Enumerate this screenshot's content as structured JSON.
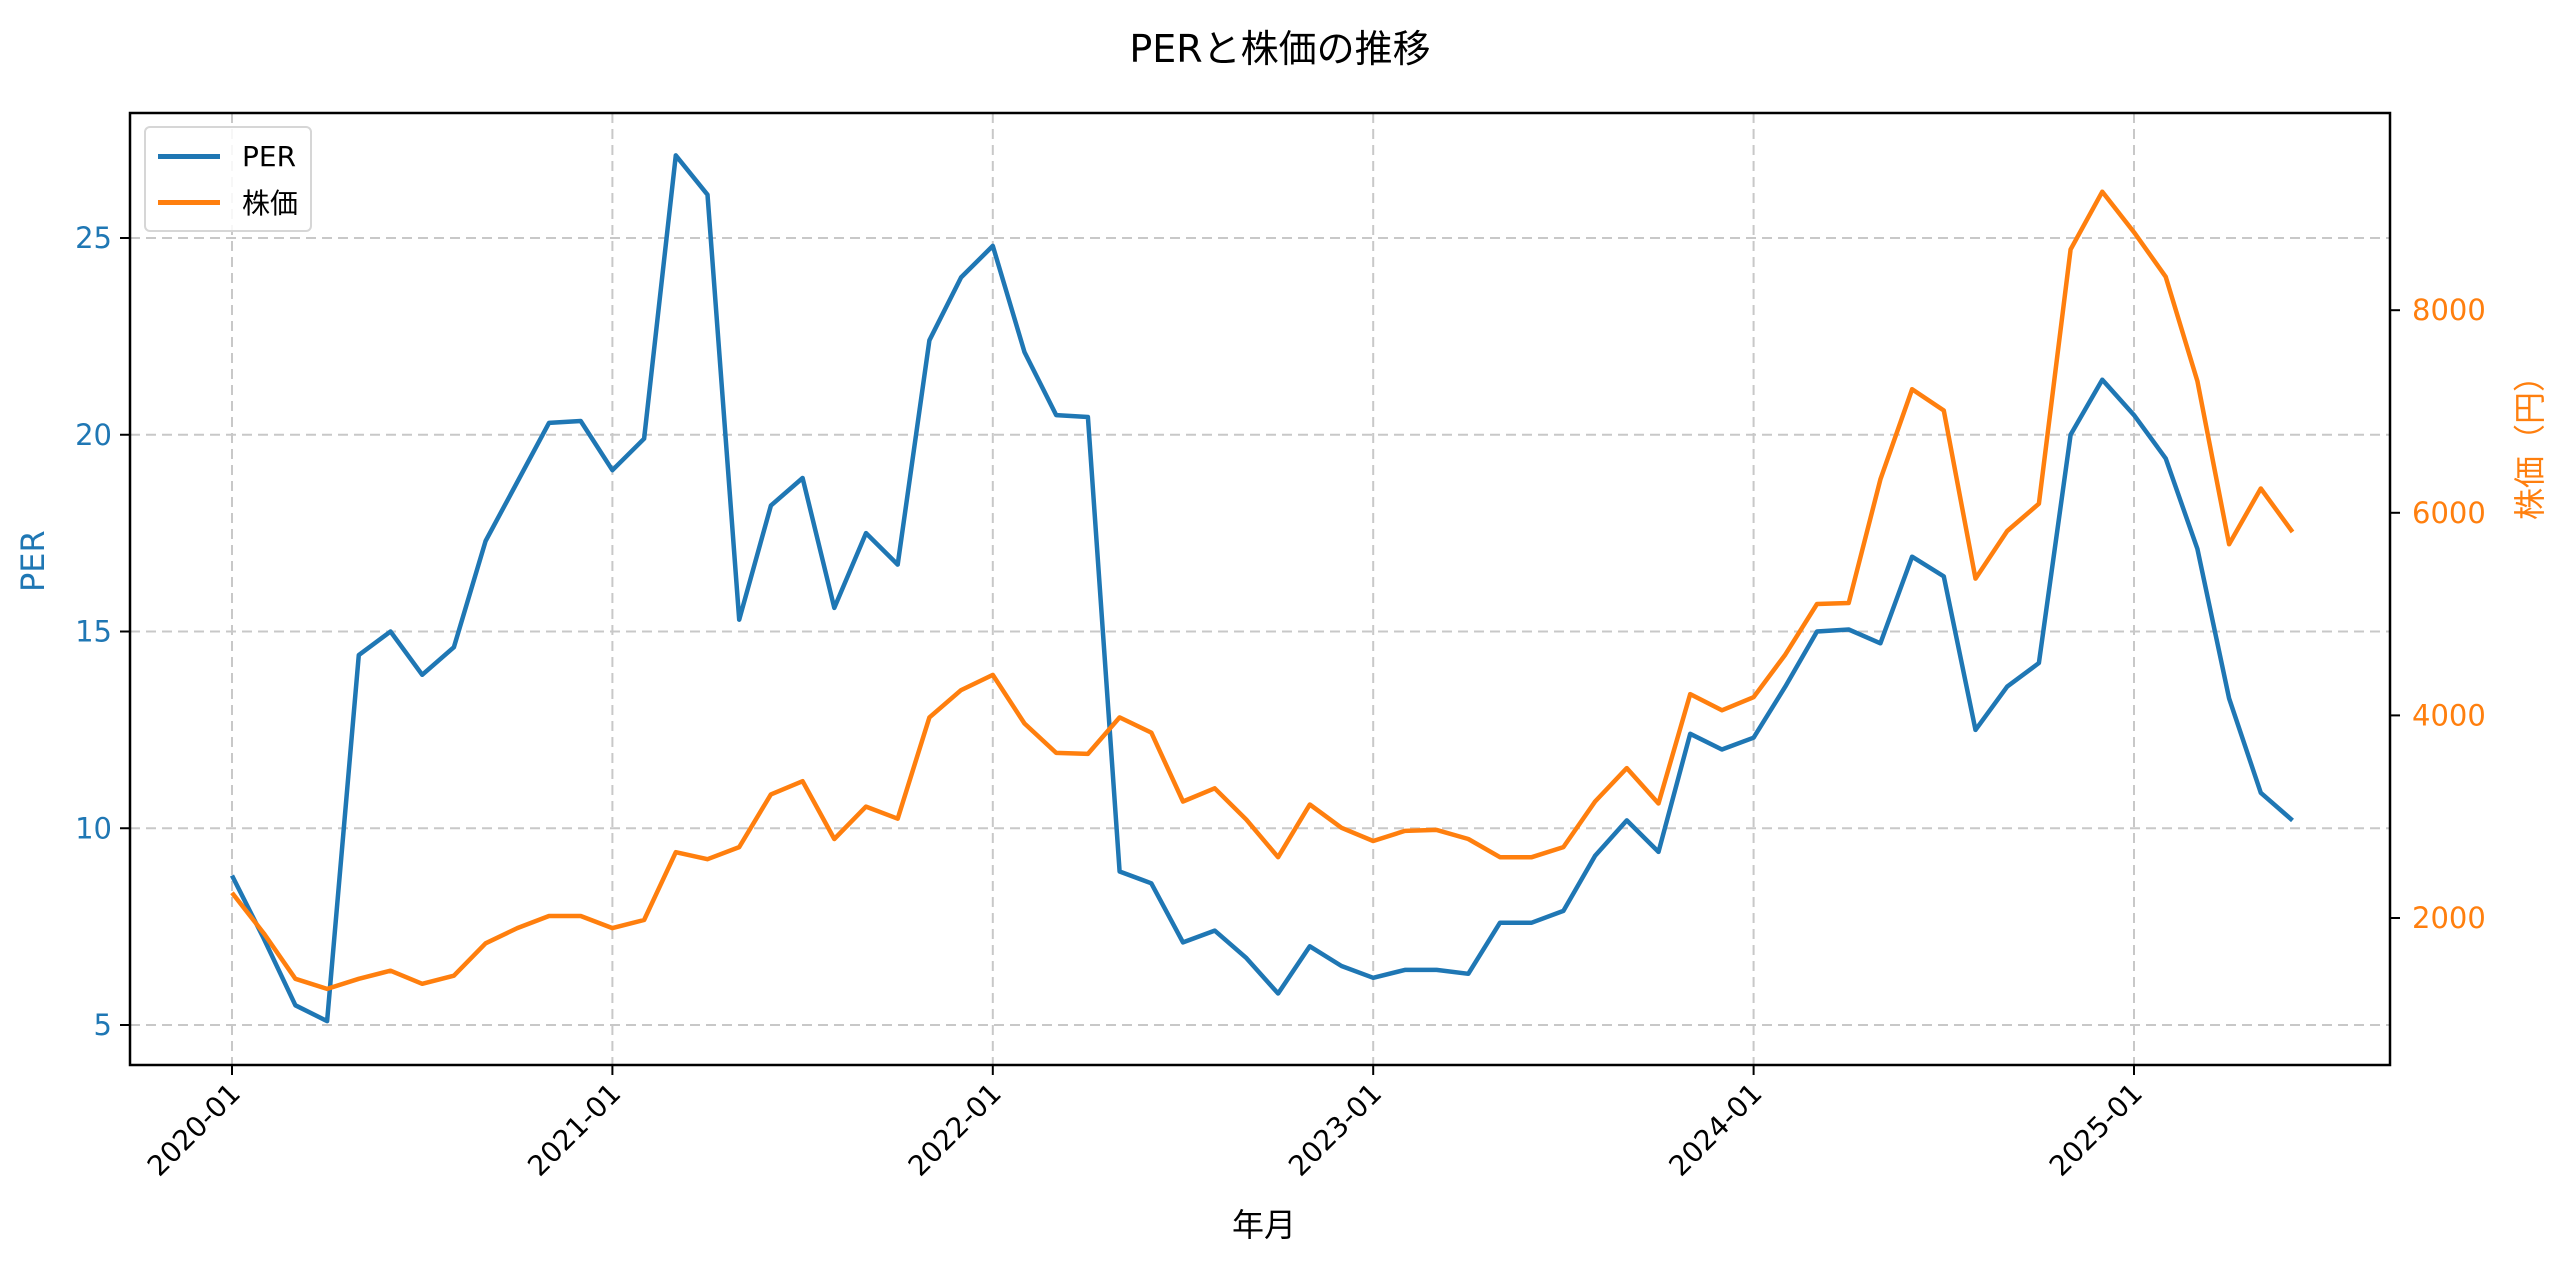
{
  "chart_data": {
    "type": "line",
    "title": "PERと株価の推移",
    "xlabel": "年月",
    "ylabel_left": "PER",
    "ylabel_right": "株価（円）",
    "x_ticks": [
      "2020-01",
      "2021-01",
      "2022-01",
      "2023-01",
      "2024-01",
      "2025-01"
    ],
    "y_left_ticks": [
      5,
      10,
      15,
      20,
      25
    ],
    "y_right_ticks": [
      2000,
      4000,
      6000,
      8000
    ],
    "y_left_range": [
      4,
      28.2
    ],
    "y_right_range": [
      600,
      9800
    ],
    "grid": true,
    "legend_position": "upper left",
    "x": [
      "2020-01",
      "2020-02",
      "2020-03",
      "2020-04",
      "2020-05",
      "2020-06",
      "2020-07",
      "2020-08",
      "2020-09",
      "2020-10",
      "2020-11",
      "2020-12",
      "2021-01",
      "2021-02",
      "2021-03",
      "2021-04",
      "2021-05",
      "2021-06",
      "2021-07",
      "2021-08",
      "2021-09",
      "2021-10",
      "2021-11",
      "2021-12",
      "2022-01",
      "2022-02",
      "2022-03",
      "2022-04",
      "2022-05",
      "2022-06",
      "2022-07",
      "2022-08",
      "2022-09",
      "2022-10",
      "2022-11",
      "2022-12",
      "2023-01",
      "2023-02",
      "2023-03",
      "2023-04",
      "2023-05",
      "2023-06",
      "2023-07",
      "2023-08",
      "2023-09",
      "2023-10",
      "2023-11",
      "2023-12",
      "2024-01",
      "2024-02",
      "2024-03",
      "2024-04",
      "2024-05",
      "2024-06",
      "2024-07",
      "2024-08",
      "2024-09",
      "2024-10",
      "2024-11",
      "2024-12",
      "2025-01",
      "2025-02",
      "2025-03",
      "2025-04",
      "2025-05",
      "2025-06"
    ],
    "series": [
      {
        "name": "PER",
        "axis": "left",
        "color": "#1f77b4",
        "values": [
          8.8,
          7.2,
          5.5,
          5.1,
          14.4,
          15.0,
          13.9,
          14.6,
          17.3,
          18.8,
          20.3,
          20.35,
          19.1,
          19.9,
          27.1,
          26.1,
          15.3,
          18.2,
          18.9,
          15.6,
          17.5,
          16.7,
          22.4,
          24.0,
          24.8,
          22.1,
          20.5,
          20.45,
          8.9,
          8.6,
          7.1,
          7.4,
          6.7,
          5.8,
          7.0,
          6.5,
          6.2,
          6.4,
          6.4,
          6.3,
          7.6,
          7.6,
          7.9,
          9.3,
          10.2,
          9.4,
          12.4,
          12.0,
          12.3,
          13.6,
          15.0,
          15.05,
          14.7,
          16.9,
          16.4,
          12.5,
          13.6,
          14.2,
          20.0,
          21.4,
          20.5,
          19.4,
          17.1,
          13.3,
          10.9,
          10.2
        ]
      },
      {
        "name": "株価",
        "axis": "right",
        "color": "#ff7f0e",
        "values": [
          2250,
          1850,
          1400,
          1300,
          1400,
          1480,
          1350,
          1430,
          1750,
          1900,
          2020,
          2020,
          1900,
          1980,
          2650,
          2580,
          2700,
          3220,
          3350,
          2780,
          3100,
          2980,
          3980,
          4250,
          4400,
          3920,
          3630,
          3620,
          3980,
          3830,
          3150,
          3280,
          2970,
          2600,
          3120,
          2890,
          2760,
          2860,
          2870,
          2780,
          2600,
          2600,
          2700,
          3150,
          3480,
          3130,
          4210,
          4050,
          4180,
          4600,
          5100,
          5110,
          6330,
          7220,
          7010,
          5350,
          5820,
          6090,
          8600,
          9170,
          8770,
          8330,
          7300,
          5690,
          6240,
          5810
        ]
      }
    ]
  },
  "legend": [
    {
      "label": "PER",
      "color": "#1f77b4"
    },
    {
      "label": "株価",
      "color": "#ff7f0e"
    }
  ]
}
